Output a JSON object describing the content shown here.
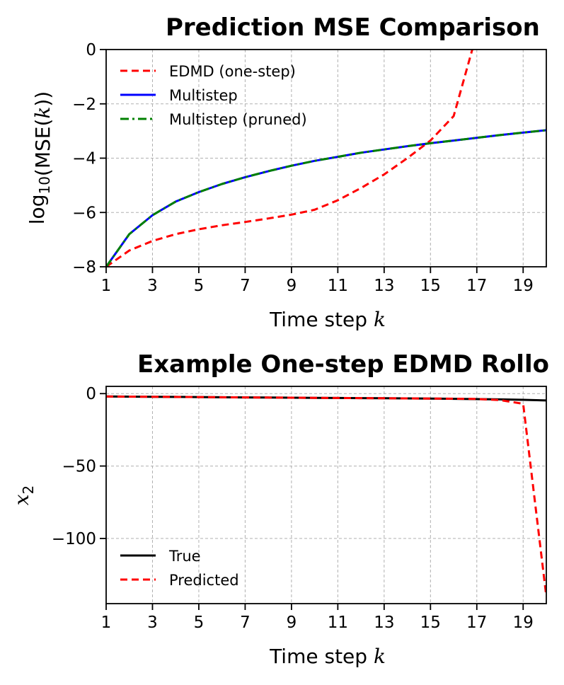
{
  "chart_data": [
    {
      "type": "line",
      "title": "Prediction MSE Comparison",
      "xlabel": "Time step k",
      "ylabel": "log10(MSE(k))",
      "xlim": [
        1,
        20
      ],
      "ylim": [
        -8,
        0
      ],
      "xticks": [
        1,
        3,
        5,
        7,
        9,
        11,
        13,
        15,
        17,
        19
      ],
      "xtick_labels": [
        "1",
        "3",
        "5",
        "7",
        "9",
        "11",
        "13",
        "15",
        "17",
        "19"
      ],
      "yticks": [
        0,
        -2,
        -4,
        -6,
        -8
      ],
      "ytick_labels": [
        "0",
        "−2",
        "−4",
        "−6",
        "−8"
      ],
      "grid": true,
      "legend_position": "top-left",
      "series": [
        {
          "name": "EDMD (one-step)",
          "color": "#ff0000",
          "style": "dashed",
          "x": [
            1,
            2,
            3,
            4,
            5,
            6,
            7,
            8,
            9,
            10,
            11,
            12,
            13,
            14,
            15,
            16,
            17
          ],
          "y": [
            -8.0,
            -7.4,
            -7.05,
            -6.8,
            -6.62,
            -6.47,
            -6.35,
            -6.22,
            -6.08,
            -5.9,
            -5.55,
            -5.1,
            -4.6,
            -4.0,
            -3.35,
            -2.45,
            0.6
          ]
        },
        {
          "name": "Multistep",
          "color": "#0000ff",
          "style": "solid",
          "x": [
            1,
            2,
            3,
            4,
            5,
            6,
            7,
            8,
            9,
            10,
            11,
            12,
            13,
            14,
            15,
            16,
            17,
            18,
            19,
            20
          ],
          "y": [
            -8.0,
            -6.8,
            -6.1,
            -5.6,
            -5.25,
            -4.95,
            -4.7,
            -4.48,
            -4.28,
            -4.1,
            -3.95,
            -3.8,
            -3.68,
            -3.56,
            -3.45,
            -3.35,
            -3.25,
            -3.15,
            -3.06,
            -2.97
          ]
        },
        {
          "name": "Multistep (pruned)",
          "color": "#008000",
          "style": "dashdot",
          "x": [
            1,
            2,
            3,
            4,
            5,
            6,
            7,
            8,
            9,
            10,
            11,
            12,
            13,
            14,
            15,
            16,
            17,
            18,
            19,
            20
          ],
          "y": [
            -8.0,
            -6.8,
            -6.1,
            -5.6,
            -5.25,
            -4.95,
            -4.7,
            -4.48,
            -4.28,
            -4.1,
            -3.95,
            -3.8,
            -3.68,
            -3.56,
            -3.45,
            -3.35,
            -3.25,
            -3.15,
            -3.06,
            -2.97
          ]
        }
      ]
    },
    {
      "type": "line",
      "title": "Example One-step EDMD Rollo",
      "xlabel": "Time step k",
      "ylabel": "x2",
      "xlim": [
        1,
        20
      ],
      "ylim": [
        -145,
        5
      ],
      "xticks": [
        1,
        3,
        5,
        7,
        9,
        11,
        13,
        15,
        17,
        19
      ],
      "xtick_labels": [
        "1",
        "3",
        "5",
        "7",
        "9",
        "11",
        "13",
        "15",
        "17",
        "19"
      ],
      "yticks": [
        0,
        -50,
        -100
      ],
      "ytick_labels": [
        "0",
        "−50",
        "−100"
      ],
      "grid": true,
      "legend_position": "bottom-left",
      "series": [
        {
          "name": "True",
          "color": "#000000",
          "style": "solid",
          "x": [
            1,
            2,
            3,
            4,
            5,
            6,
            7,
            8,
            9,
            10,
            11,
            12,
            13,
            14,
            15,
            16,
            17,
            18,
            19,
            20
          ],
          "y": [
            -2.0,
            -2.1,
            -2.2,
            -2.3,
            -2.4,
            -2.5,
            -2.6,
            -2.7,
            -2.8,
            -2.9,
            -3.0,
            -3.1,
            -3.2,
            -3.3,
            -3.4,
            -3.6,
            -3.8,
            -4.0,
            -4.3,
            -4.7
          ]
        },
        {
          "name": "Predicted",
          "color": "#ff0000",
          "style": "dashed",
          "x": [
            1,
            2,
            3,
            4,
            5,
            6,
            7,
            8,
            9,
            10,
            11,
            12,
            13,
            14,
            15,
            16,
            17,
            18,
            19,
            20
          ],
          "y": [
            -2.0,
            -2.1,
            -2.2,
            -2.3,
            -2.4,
            -2.5,
            -2.6,
            -2.7,
            -2.8,
            -2.9,
            -3.0,
            -3.1,
            -3.2,
            -3.3,
            -3.4,
            -3.5,
            -3.7,
            -4.5,
            -7.0,
            -140.0
          ]
        }
      ]
    }
  ]
}
